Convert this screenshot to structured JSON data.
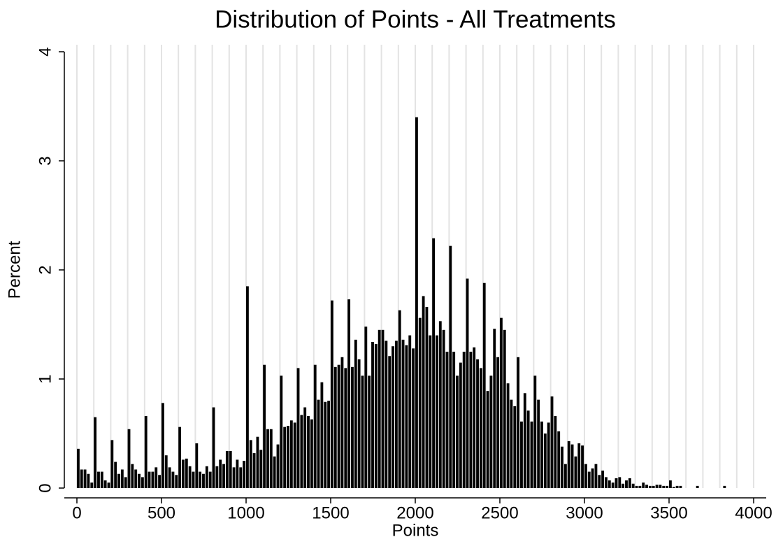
{
  "chart_data": {
    "type": "histogram",
    "title": "Distribution of Points - All Treatments",
    "x_label": "Points",
    "y_label": "Percent",
    "color": "#000000",
    "bins": [
      0,
      20,
      40,
      60,
      80,
      100,
      120,
      140,
      160,
      180,
      200,
      220,
      240,
      260,
      280,
      300,
      320,
      340,
      360,
      380,
      400,
      420,
      440,
      460,
      480,
      500,
      520,
      540,
      560,
      580,
      600,
      620,
      640,
      660,
      680,
      700,
      720,
      740,
      760,
      780,
      800,
      820,
      840,
      860,
      880,
      900,
      920,
      940,
      960,
      980,
      1000,
      1020,
      1040,
      1060,
      1080,
      1100,
      1120,
      1140,
      1160,
      1180,
      1200,
      1220,
      1240,
      1260,
      1280,
      1300,
      1320,
      1340,
      1360,
      1380,
      1400,
      1420,
      1440,
      1460,
      1480,
      1500,
      1520,
      1540,
      1560,
      1580,
      1600,
      1620,
      1640,
      1660,
      1680,
      1700,
      1720,
      1740,
      1760,
      1780,
      1800,
      1820,
      1840,
      1860,
      1880,
      1900,
      1920,
      1940,
      1960,
      1980,
      2000,
      2020,
      2040,
      2060,
      2080,
      2100,
      2120,
      2140,
      2160,
      2180,
      2200,
      2220,
      2240,
      2260,
      2280,
      2300,
      2320,
      2340,
      2360,
      2380,
      2400,
      2420,
      2440,
      2460,
      2480,
      2500,
      2520,
      2540,
      2560,
      2580,
      2600,
      2620,
      2640,
      2660,
      2680,
      2700,
      2720,
      2740,
      2760,
      2780,
      2800,
      2820,
      2840,
      2860,
      2880,
      2900,
      2920,
      2940,
      2960,
      2980,
      3000,
      3020,
      3040,
      3060,
      3080,
      3100,
      3120,
      3140,
      3160,
      3180,
      3200,
      3220,
      3240,
      3260,
      3280,
      3300,
      3320,
      3340,
      3360,
      3380,
      3400,
      3420,
      3440,
      3460,
      3480,
      3500,
      3520,
      3540,
      3560,
      3580,
      3600,
      3620,
      3640,
      3660,
      3680,
      3700,
      3720,
      3740,
      3760,
      3780,
      3800,
      3820,
      3840,
      3860,
      3880,
      3900,
      3920,
      3940,
      3960,
      3980,
      4000
    ],
    "values": [
      0.36,
      0.17,
      0.17,
      0.13,
      0.05,
      0.65,
      0.15,
      0.15,
      0.07,
      0.05,
      0.44,
      0.24,
      0.13,
      0.17,
      0.1,
      0.54,
      0.22,
      0.17,
      0.13,
      0.1,
      0.66,
      0.15,
      0.15,
      0.19,
      0.12,
      0.78,
      0.3,
      0.19,
      0.15,
      0.12,
      0.56,
      0.26,
      0.27,
      0.2,
      0.15,
      0.41,
      0.15,
      0.13,
      0.2,
      0.15,
      0.74,
      0.2,
      0.26,
      0.22,
      0.34,
      0.34,
      0.19,
      0.26,
      0.19,
      0.25,
      1.85,
      0.44,
      0.32,
      0.47,
      0.35,
      1.13,
      0.54,
      0.54,
      0.29,
      0.4,
      1.03,
      0.56,
      0.57,
      0.62,
      0.6,
      1.1,
      0.67,
      0.74,
      0.66,
      0.63,
      1.13,
      0.81,
      0.97,
      0.79,
      0.8,
      1.72,
      1.11,
      1.13,
      1.2,
      1.1,
      1.73,
      1.11,
      1.36,
      1.18,
      1.03,
      1.48,
      1.03,
      1.34,
      1.32,
      1.45,
      1.45,
      1.35,
      1.21,
      1.3,
      1.35,
      1.63,
      1.36,
      1.31,
      1.4,
      1.28,
      3.4,
      1.56,
      1.76,
      1.66,
      1.4,
      2.29,
      1.4,
      1.53,
      1.45,
      1.25,
      2.22,
      1.25,
      1.03,
      1.15,
      1.25,
      1.92,
      1.25,
      1.29,
      1.18,
      1.1,
      1.88,
      0.89,
      1.03,
      1.46,
      1.2,
      1.56,
      1.45,
      0.96,
      0.81,
      0.75,
      1.2,
      0.61,
      0.87,
      0.71,
      0.61,
      1.03,
      0.81,
      0.61,
      0.5,
      0.6,
      0.84,
      0.66,
      0.52,
      0.38,
      0.22,
      0.43,
      0.4,
      0.29,
      0.41,
      0.39,
      0.22,
      0.15,
      0.18,
      0.22,
      0.12,
      0.16,
      0.1,
      0.07,
      0.05,
      0.09,
      0.1,
      0.04,
      0.07,
      0.09,
      0.04,
      0.02,
      0.02,
      0.05,
      0.03,
      0.02,
      0.02,
      0.03,
      0.03,
      0.02,
      0.02,
      0.07,
      0.01,
      0.02,
      0.02,
      0,
      0,
      0,
      0,
      0.02,
      0,
      0,
      0,
      0,
      0,
      0,
      0,
      0.02,
      0,
      0,
      0,
      0,
      0,
      0,
      0,
      0
    ],
    "xlim": [
      0,
      4000
    ],
    "xticks": [
      0,
      500,
      1000,
      1500,
      2000,
      2500,
      3000,
      3500,
      4000
    ],
    "xgrid": [
      0,
      100,
      200,
      300,
      400,
      500,
      600,
      700,
      800,
      900,
      1000,
      1100,
      1200,
      1300,
      1400,
      1500,
      1600,
      1700,
      1800,
      1900,
      2000,
      2100,
      2200,
      2300,
      2400,
      2500,
      2600,
      2700,
      2800,
      2900,
      3000,
      3100,
      3200,
      3300,
      3400,
      3500,
      3600,
      3700,
      3800,
      3900,
      4000
    ],
    "ylim": [
      0,
      4
    ],
    "yticks": [
      0,
      1,
      2,
      3,
      4
    ]
  }
}
